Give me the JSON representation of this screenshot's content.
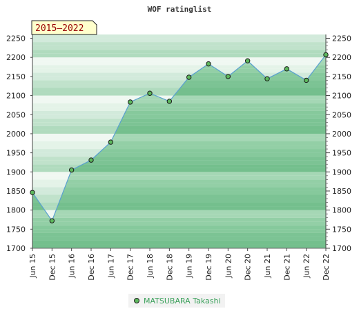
{
  "chart_data": {
    "type": "area",
    "title": "WOF ratinglist",
    "period_label": "2015–2022",
    "categories": [
      "Jun 15",
      "Dec 15",
      "Jun 16",
      "Dec 16",
      "Jun 17",
      "Dec 17",
      "Jun 18",
      "Dec 18",
      "Jun 19",
      "Dec 19",
      "Jun 20",
      "Dec 20",
      "Jun 21",
      "Dec 21",
      "Jun 22",
      "Dec 22"
    ],
    "series": [
      {
        "name": "MATSUBARA Takashi",
        "values": [
          1846,
          1772,
          1905,
          1931,
          1978,
          2083,
          2106,
          2085,
          2148,
          2183,
          2150,
          2191,
          2144,
          2170,
          2140,
          2207
        ]
      }
    ],
    "yticks": [
      1700,
      1750,
      1800,
      1850,
      1900,
      1950,
      2000,
      2050,
      2100,
      2150,
      2200,
      2250
    ],
    "ylim": [
      1700,
      2260
    ],
    "legend_position": "bottom",
    "colors": {
      "line": "#5aa0d0",
      "marker": "#5db85d",
      "area_base": "#7dc59a",
      "area_light": "#bde2c8"
    }
  }
}
